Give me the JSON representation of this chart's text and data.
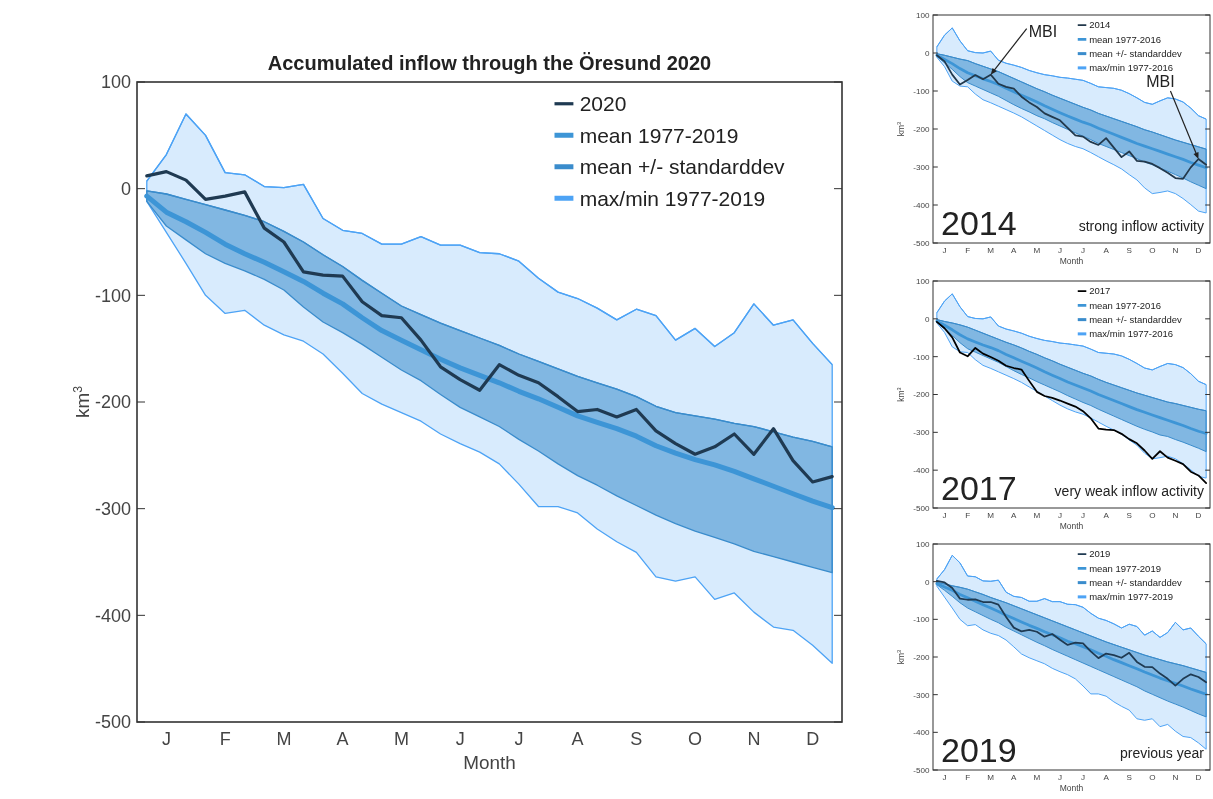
{
  "chart_data": [
    {
      "type": "line",
      "title": "Accumulated inflow through the Öresund 2020",
      "xlabel": "Month",
      "ylabel": "km$^{3}$",
      "ylim": [
        -500,
        100
      ],
      "yticks": [
        -500,
        -400,
        -300,
        -200,
        -100,
        0,
        100
      ],
      "categories": [
        null,
        "J",
        null,
        null,
        "F",
        null,
        null,
        "M",
        null,
        null,
        "A",
        null,
        null,
        "M",
        null,
        null,
        "J",
        null,
        null,
        "J",
        null,
        null,
        "A",
        null,
        null,
        "S",
        null,
        null,
        "O",
        null,
        null,
        "N",
        null,
        null,
        "D",
        null
      ],
      "legend": "top right",
      "series": [
        {
          "name": "2020",
          "color": "#1f3a52",
          "values": [
            12,
            16,
            8,
            -10,
            -7,
            -3,
            -37,
            -50,
            -78,
            -81,
            -82,
            -106,
            -119,
            -121,
            -142,
            -167,
            -179,
            -189,
            -165,
            -175,
            -182,
            -195,
            -209,
            -207,
            -214,
            -207,
            -227,
            -239,
            -249,
            -242,
            -230,
            -249,
            -225,
            -255,
            -275,
            -270
          ]
        },
        {
          "name": "mean 1977-2019",
          "color": "#3d95d6",
          "values": [
            -7,
            -22,
            -31,
            -41,
            -52,
            -61,
            -69,
            -78,
            -87,
            -98,
            -108,
            -121,
            -133,
            -142,
            -151,
            -160,
            -168,
            -175,
            -182,
            -190,
            -197,
            -205,
            -213,
            -219,
            -225,
            -232,
            -241,
            -248,
            -254,
            -259,
            -265,
            -272,
            -279,
            -286,
            -293,
            -299
          ]
        },
        {
          "name": "mean +/- standarddev",
          "color": "#3a8ccc",
          "values": [
            -2,
            -5,
            -10,
            -15,
            -20,
            -25,
            -31,
            -40,
            -50,
            -62,
            -73,
            -86,
            -98,
            -110,
            -118,
            -126,
            -133,
            -140,
            -147,
            -155,
            -162,
            -169,
            -176,
            -182,
            -188,
            -195,
            -204,
            -210,
            -213,
            -216,
            -220,
            -223,
            -228,
            -233,
            -237,
            -242
          ],
          "upper": [
            -2,
            -5,
            -10,
            -15,
            -20,
            -25,
            -31,
            -40,
            -50,
            -62,
            -73,
            -86,
            -98,
            -110,
            -118,
            -126,
            -133,
            -140,
            -147,
            -155,
            -162,
            -169,
            -176,
            -182,
            -188,
            -195,
            -204,
            -210,
            -213,
            -216,
            -220,
            -223,
            -228,
            -233,
            -237,
            -242
          ],
          "lower": [
            -12,
            -35,
            -48,
            -61,
            -70,
            -77,
            -85,
            -95,
            -111,
            -125,
            -135,
            -146,
            -158,
            -170,
            -180,
            -193,
            -205,
            -214,
            -223,
            -235,
            -246,
            -258,
            -269,
            -278,
            -288,
            -297,
            -306,
            -314,
            -321,
            -327,
            -333,
            -340,
            -345,
            -350,
            -355,
            -360
          ]
        },
        {
          "name": "max/min 1977-2019",
          "color": "#4da3f5",
          "values": [
            7,
            32,
            70,
            50,
            15,
            13,
            2,
            1,
            4,
            -28,
            -39,
            -42,
            -52,
            -52,
            -45,
            -53,
            -53,
            -60,
            -61,
            -68,
            -84,
            -97,
            -103,
            -112,
            -123,
            -113,
            -119,
            -142,
            -131,
            -148,
            -135,
            -108,
            -128,
            -123,
            -145,
            -165
          ],
          "upper": [
            7,
            32,
            70,
            50,
            15,
            13,
            2,
            1,
            4,
            -28,
            -39,
            -42,
            -52,
            -52,
            -45,
            -53,
            -53,
            -60,
            -61,
            -68,
            -84,
            -97,
            -103,
            -112,
            -123,
            -113,
            -119,
            -142,
            -131,
            -148,
            -135,
            -108,
            -128,
            -123,
            -145,
            -165
          ],
          "lower": [
            -12,
            -41,
            -70,
            -100,
            -117,
            -114,
            -128,
            -137,
            -143,
            -155,
            -173,
            -192,
            -202,
            -210,
            -218,
            -230,
            -239,
            -247,
            -258,
            -277,
            -298,
            -298,
            -304,
            -319,
            -331,
            -341,
            -364,
            -368,
            -364,
            -385,
            -379,
            -397,
            -411,
            -414,
            -428,
            -445
          ]
        }
      ]
    },
    {
      "type": "line",
      "xlabel": "Month",
      "ylabel": "km$^{3}$",
      "ylim": [
        -500,
        100
      ],
      "yticks": [
        -500,
        -400,
        -300,
        -200,
        -100,
        0,
        100
      ],
      "categories": [
        null,
        "J",
        null,
        null,
        "F",
        null,
        null,
        "M",
        null,
        null,
        "A",
        null,
        null,
        "M",
        null,
        null,
        "J",
        null,
        null,
        "J",
        null,
        null,
        "A",
        null,
        null,
        "S",
        null,
        null,
        "O",
        null,
        null,
        "N",
        null,
        null,
        "D",
        null
      ],
      "legend": "top right",
      "annotations": [
        {
          "text": "MBI",
          "x": "M",
          "y": -57
        },
        {
          "text": "MBI",
          "x": "D",
          "y": -279
        },
        "2014",
        "strong inflow activity"
      ],
      "series": [
        {
          "name": "2014",
          "color": "#22384b",
          "values": [
            -6,
            -22,
            -57,
            -83,
            -71,
            -58,
            -69,
            -57,
            -81,
            -89,
            -94,
            -115,
            -130,
            -142,
            -159,
            -168,
            -177,
            -197,
            -217,
            -220,
            -234,
            -242,
            -224,
            -249,
            -274,
            -259,
            -284,
            -286,
            -292,
            -303,
            -315,
            -329,
            -331,
            -301,
            -279,
            -294
          ]
        },
        {
          "name": "mean 1977-2016",
          "color": "#3d95d6",
          "values": [
            -6,
            -17,
            -28,
            -41,
            -52,
            -60,
            -68,
            -75,
            -83,
            -93,
            -102,
            -111,
            -120,
            -129,
            -139,
            -148,
            -157,
            -166,
            -174,
            -182,
            -189,
            -198,
            -206,
            -214,
            -222,
            -230,
            -238,
            -245,
            -252,
            -259,
            -266,
            -273,
            -280,
            -288,
            -295,
            -302
          ]
        },
        {
          "name": "mean +/- standarddev",
          "color": "#3a8ccc",
          "values": [
            -2,
            -6,
            -11,
            -16,
            -20,
            -28,
            -35,
            -42,
            -49,
            -58,
            -67,
            -76,
            -85,
            -94,
            -102,
            -111,
            -119,
            -127,
            -135,
            -143,
            -150,
            -159,
            -166,
            -173,
            -180,
            -187,
            -194,
            -202,
            -208,
            -215,
            -222,
            -229,
            -235,
            -241,
            -247,
            -253
          ],
          "upper": [
            -2,
            -6,
            -11,
            -16,
            -20,
            -28,
            -35,
            -42,
            -49,
            -58,
            -67,
            -76,
            -85,
            -94,
            -102,
            -111,
            -119,
            -127,
            -135,
            -143,
            -150,
            -159,
            -166,
            -173,
            -180,
            -187,
            -194,
            -202,
            -208,
            -215,
            -222,
            -229,
            -235,
            -241,
            -247,
            -253
          ],
          "lower": [
            -9,
            -26,
            -43,
            -62,
            -78,
            -87,
            -96,
            -105,
            -114,
            -125,
            -136,
            -146,
            -155,
            -165,
            -173,
            -183,
            -192,
            -201,
            -210,
            -219,
            -228,
            -238,
            -246,
            -254,
            -262,
            -270,
            -278,
            -287,
            -294,
            -303,
            -311,
            -320,
            -329,
            -339,
            -348,
            -357
          ]
        },
        {
          "name": "max/min 1977-2016",
          "color": "#4da3f5",
          "values": [
            16,
            47,
            66,
            32,
            6,
            1,
            0,
            5,
            -19,
            -27,
            -32,
            -38,
            -46,
            -52,
            -57,
            -60,
            -64,
            -66,
            -69,
            -72,
            -80,
            -89,
            -91,
            -93,
            -98,
            -107,
            -118,
            -130,
            -135,
            -126,
            -118,
            -121,
            -129,
            -145,
            -165,
            -174
          ],
          "upper": [
            16,
            47,
            66,
            32,
            6,
            1,
            0,
            5,
            -19,
            -27,
            -32,
            -38,
            -46,
            -52,
            -57,
            -60,
            -64,
            -66,
            -69,
            -72,
            -80,
            -89,
            -91,
            -93,
            -98,
            -107,
            -118,
            -130,
            -135,
            -126,
            -118,
            -121,
            -129,
            -145,
            -165,
            -174
          ],
          "lower": [
            -11,
            -36,
            -74,
            -87,
            -89,
            -108,
            -123,
            -131,
            -140,
            -149,
            -158,
            -168,
            -180,
            -192,
            -204,
            -216,
            -228,
            -238,
            -246,
            -252,
            -262,
            -273,
            -284,
            -294,
            -305,
            -320,
            -334,
            -355,
            -370,
            -367,
            -363,
            -370,
            -383,
            -399,
            -416,
            -421
          ]
        }
      ]
    },
    {
      "type": "line",
      "xlabel": "Month",
      "ylabel": "km$^{3}$",
      "ylim": [
        -500,
        100
      ],
      "yticks": [
        -500,
        -400,
        -300,
        -200,
        -100,
        0,
        100
      ],
      "categories": [
        null,
        "J",
        null,
        null,
        "F",
        null,
        null,
        "M",
        null,
        null,
        "A",
        null,
        null,
        "M",
        null,
        null,
        "J",
        null,
        null,
        "J",
        null,
        null,
        "A",
        null,
        null,
        "S",
        null,
        null,
        "O",
        null,
        null,
        "N",
        null,
        null,
        "D",
        null
      ],
      "legend": "top right",
      "annotations": [
        "2017",
        "very weak inflow activity"
      ],
      "series": [
        {
          "name": "2017",
          "color": "#000000",
          "values": [
            -8,
            -25,
            -49,
            -89,
            -99,
            -77,
            -92,
            -101,
            -111,
            -124,
            -130,
            -134,
            -164,
            -193,
            -204,
            -209,
            -216,
            -224,
            -232,
            -244,
            -263,
            -290,
            -293,
            -294,
            -304,
            -318,
            -329,
            -348,
            -370,
            -350,
            -367,
            -375,
            -384,
            -404,
            -414,
            -434
          ]
        },
        {
          "name": "mean 1977-2016",
          "color": "#3d95d6",
          "values": [
            -6,
            -17,
            -29,
            -42,
            -53,
            -61,
            -69,
            -76,
            -84,
            -94,
            -103,
            -112,
            -121,
            -130,
            -140,
            -149,
            -158,
            -167,
            -175,
            -183,
            -191,
            -200,
            -208,
            -216,
            -224,
            -232,
            -240,
            -247,
            -254,
            -261,
            -268,
            -275,
            -282,
            -290,
            -297,
            -303
          ]
        },
        {
          "name": "mean +/- standarddev",
          "color": "#3a8ccc",
          "values": [
            -2,
            -7,
            -11,
            -16,
            -22,
            -30,
            -38,
            -46,
            -54,
            -62,
            -69,
            -77,
            -86,
            -94,
            -103,
            -111,
            -120,
            -128,
            -136,
            -144,
            -151,
            -160,
            -168,
            -175,
            -182,
            -189,
            -196,
            -202,
            -208,
            -214,
            -220,
            -224,
            -229,
            -234,
            -239,
            -243
          ],
          "upper": [
            -2,
            -7,
            -11,
            -16,
            -22,
            -30,
            -38,
            -46,
            -54,
            -62,
            -69,
            -77,
            -86,
            -94,
            -103,
            -111,
            -120,
            -128,
            -136,
            -144,
            -151,
            -160,
            -168,
            -175,
            -182,
            -189,
            -196,
            -202,
            -208,
            -214,
            -220,
            -224,
            -229,
            -234,
            -239,
            -243
          ],
          "lower": [
            -9,
            -26,
            -44,
            -63,
            -79,
            -88,
            -97,
            -106,
            -115,
            -126,
            -137,
            -147,
            -156,
            -166,
            -175,
            -184,
            -193,
            -203,
            -212,
            -221,
            -229,
            -239,
            -248,
            -257,
            -266,
            -275,
            -284,
            -292,
            -299,
            -307,
            -311,
            -319,
            -326,
            -334,
            -342,
            -351
          ]
        },
        {
          "name": "max/min 1977-2016",
          "color": "#4da3f5",
          "values": [
            16,
            47,
            66,
            32,
            6,
            1,
            0,
            5,
            -19,
            -27,
            -32,
            -38,
            -46,
            -52,
            -57,
            -60,
            -64,
            -66,
            -69,
            -72,
            -80,
            -89,
            -91,
            -93,
            -98,
            -107,
            -118,
            -130,
            -135,
            -126,
            -118,
            -121,
            -129,
            -145,
            -165,
            -174
          ],
          "upper": [
            16,
            47,
            66,
            32,
            6,
            1,
            0,
            5,
            -19,
            -27,
            -32,
            -38,
            -46,
            -52,
            -57,
            -60,
            -64,
            -66,
            -69,
            -72,
            -80,
            -89,
            -91,
            -93,
            -98,
            -107,
            -118,
            -130,
            -135,
            -126,
            -118,
            -121,
            -129,
            -145,
            -165,
            -174
          ],
          "lower": [
            -11,
            -36,
            -74,
            -87,
            -89,
            -108,
            -123,
            -131,
            -140,
            -149,
            -158,
            -168,
            -180,
            -192,
            -204,
            -216,
            -228,
            -238,
            -246,
            -252,
            -262,
            -273,
            -284,
            -294,
            -305,
            -320,
            -334,
            -355,
            -370,
            -367,
            -363,
            -370,
            -383,
            -399,
            -416,
            -421
          ]
        }
      ]
    },
    {
      "type": "line",
      "xlabel": "Month",
      "ylabel": "km$^{3}$",
      "ylim": [
        -500,
        100
      ],
      "yticks": [
        -500,
        -400,
        -300,
        -200,
        -100,
        0,
        100
      ],
      "categories": [
        null,
        "J",
        null,
        null,
        "F",
        null,
        null,
        "M",
        null,
        null,
        "A",
        null,
        null,
        "M",
        null,
        null,
        "J",
        null,
        null,
        "J",
        null,
        null,
        "A",
        null,
        null,
        "S",
        null,
        null,
        "O",
        null,
        null,
        "N",
        null,
        null,
        "D",
        null
      ],
      "legend": "top right",
      "annotations": [
        "2019",
        "previous year"
      ],
      "series": [
        {
          "name": "2019",
          "color": "#1f3a52",
          "values": [
            2,
            -2,
            -17,
            -45,
            -48,
            -47,
            -54,
            -54,
            -61,
            -94,
            -122,
            -132,
            -128,
            -133,
            -146,
            -139,
            -154,
            -168,
            -162,
            -164,
            -185,
            -203,
            -191,
            -195,
            -202,
            -189,
            -213,
            -226,
            -227,
            -244,
            -258,
            -276,
            -258,
            -246,
            -253,
            -267
          ]
        },
        {
          "name": "mean 1977-2019",
          "color": "#3d95d6",
          "values": [
            -5,
            -14,
            -23,
            -34,
            -43,
            -52,
            -61,
            -70,
            -79,
            -89,
            -98,
            -107,
            -116,
            -124,
            -133,
            -141,
            -149,
            -158,
            -165,
            -173,
            -181,
            -190,
            -198,
            -207,
            -215,
            -223,
            -231,
            -240,
            -248,
            -256,
            -263,
            -270,
            -277,
            -285,
            -292,
            -299
          ]
        },
        {
          "name": "mean +/- standarddev",
          "color": "#3a8ccc",
          "values": [
            -2,
            -6,
            -11,
            -15,
            -20,
            -27,
            -34,
            -42,
            -49,
            -56,
            -64,
            -72,
            -80,
            -88,
            -96,
            -104,
            -112,
            -120,
            -128,
            -136,
            -144,
            -152,
            -160,
            -167,
            -174,
            -181,
            -188,
            -195,
            -201,
            -207,
            -213,
            -218,
            -223,
            -229,
            -235,
            -241
          ],
          "upper": [
            -2,
            -6,
            -11,
            -15,
            -20,
            -27,
            -34,
            -42,
            -49,
            -56,
            -64,
            -72,
            -80,
            -88,
            -96,
            -104,
            -112,
            -120,
            -128,
            -136,
            -144,
            -152,
            -160,
            -167,
            -174,
            -181,
            -188,
            -195,
            -201,
            -207,
            -213,
            -218,
            -223,
            -229,
            -235,
            -241
          ],
          "lower": [
            -8,
            -23,
            -39,
            -56,
            -70,
            -80,
            -90,
            -100,
            -109,
            -121,
            -131,
            -141,
            -151,
            -161,
            -170,
            -180,
            -189,
            -198,
            -207,
            -216,
            -225,
            -234,
            -243,
            -252,
            -261,
            -270,
            -279,
            -290,
            -299,
            -308,
            -317,
            -325,
            -333,
            -342,
            -351,
            -359
          ]
        },
        {
          "name": "max/min 1977-2019",
          "color": "#4da3f5",
          "values": [
            7,
            32,
            70,
            50,
            15,
            13,
            2,
            1,
            4,
            -28,
            -39,
            -42,
            -52,
            -52,
            -45,
            -53,
            -53,
            -60,
            -61,
            -68,
            -84,
            -97,
            -103,
            -112,
            -123,
            -113,
            -119,
            -142,
            -131,
            -148,
            -135,
            -108,
            -128,
            -123,
            -145,
            -165
          ],
          "upper": [
            7,
            32,
            70,
            50,
            15,
            13,
            2,
            1,
            4,
            -28,
            -39,
            -42,
            -52,
            -52,
            -45,
            -53,
            -53,
            -60,
            -61,
            -68,
            -84,
            -97,
            -103,
            -112,
            -123,
            -113,
            -119,
            -142,
            -131,
            -148,
            -135,
            -108,
            -128,
            -123,
            -145,
            -165
          ],
          "lower": [
            -12,
            -41,
            -70,
            -100,
            -117,
            -114,
            -128,
            -137,
            -143,
            -155,
            -173,
            -192,
            -202,
            -210,
            -218,
            -230,
            -239,
            -247,
            -258,
            -277,
            -298,
            -298,
            -304,
            -319,
            -331,
            -341,
            -364,
            -368,
            -364,
            -385,
            -379,
            -397,
            -411,
            -414,
            -428,
            -445
          ]
        }
      ]
    }
  ]
}
